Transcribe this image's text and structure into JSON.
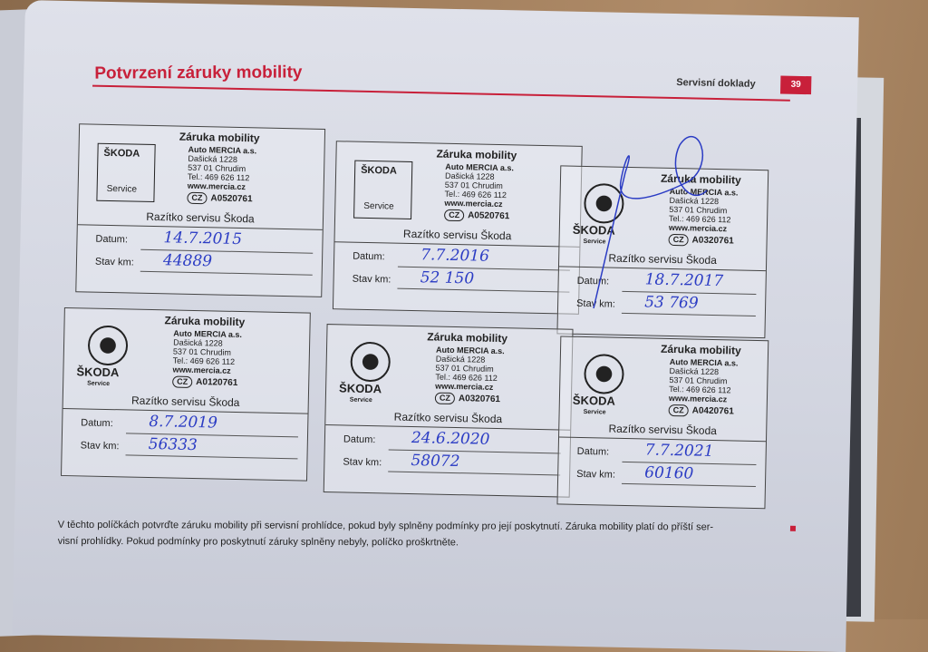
{
  "header": {
    "title": "Potvrzení záruky mobility",
    "section": "Servisní doklady",
    "page_number": "39"
  },
  "accent_color": "#c8203a",
  "labels": {
    "stamp_caption": "Razítko servisu Škoda",
    "date": "Datum:",
    "km": "Stav km:"
  },
  "dealer": {
    "name": "Auto MERCIA a.s.",
    "street": "Dašická 1228",
    "city": "537 01 Chrudim",
    "phone": "Tel.: 469 626 112",
    "web": "www.mercia.cz",
    "brand": "ŠKODA",
    "service": "Service",
    "stamp_title": "Záruka mobility",
    "country": "CZ"
  },
  "entries": [
    {
      "code": "A0520761",
      "date": "14.7.2015",
      "km": "44889",
      "logo": "square"
    },
    {
      "code": "A0520761",
      "date": "7.7.2016",
      "km": "52 150",
      "logo": "square"
    },
    {
      "code": "A0320761",
      "date": "18.7.2017",
      "km": "53 769",
      "logo": "circle"
    },
    {
      "code": "A0120761",
      "date": "8.7.2019",
      "km": "56333",
      "logo": "circle"
    },
    {
      "code": "A0320761",
      "date": "24.6.2020",
      "km": "58072",
      "logo": "circle"
    },
    {
      "code": "A0420761",
      "date": "7.7.2021",
      "km": "60160",
      "logo": "circle"
    }
  ],
  "note": {
    "line1": "V těchto políčkách potvrďte záruku mobility při servisní prohlídce, pokud byly splněny podmínky pro její poskytnutí. Záruka mobility platí do příští ser-",
    "line2": "visní prohlídky. Pokud podmínky pro poskytnutí záruky splněny nebyly, políčko proškrtněte."
  }
}
